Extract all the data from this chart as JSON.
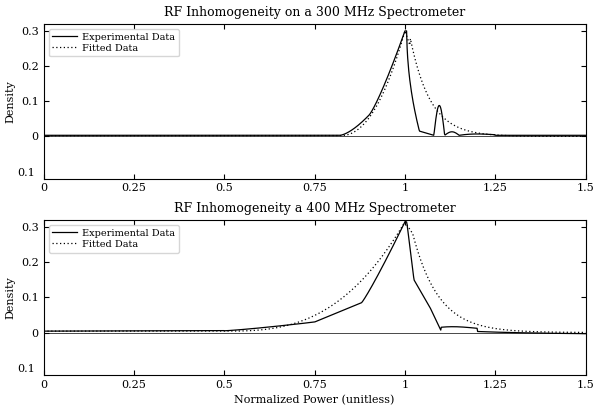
{
  "title1": "RF Inhomogeneity on a 300 MHz Spectrometer",
  "title2": "RF Inhomogeneity a 400 MHz Spectrometer",
  "xlabel": "Normalized Power (unitless)",
  "ylabel": "Density",
  "xlim": [
    0,
    1.5
  ],
  "yticks": [
    0.0,
    0.1,
    0.2,
    0.3
  ],
  "xticks": [
    0,
    0.25,
    0.5,
    0.75,
    1.0,
    1.25,
    1.5
  ],
  "legend_labels": [
    "Experimental Data",
    "Fitted Data"
  ],
  "line_color": "black",
  "background_color": "white",
  "title_fontsize": 9,
  "label_fontsize": 8,
  "legend_fontsize": 7,
  "linewidth": 0.9
}
